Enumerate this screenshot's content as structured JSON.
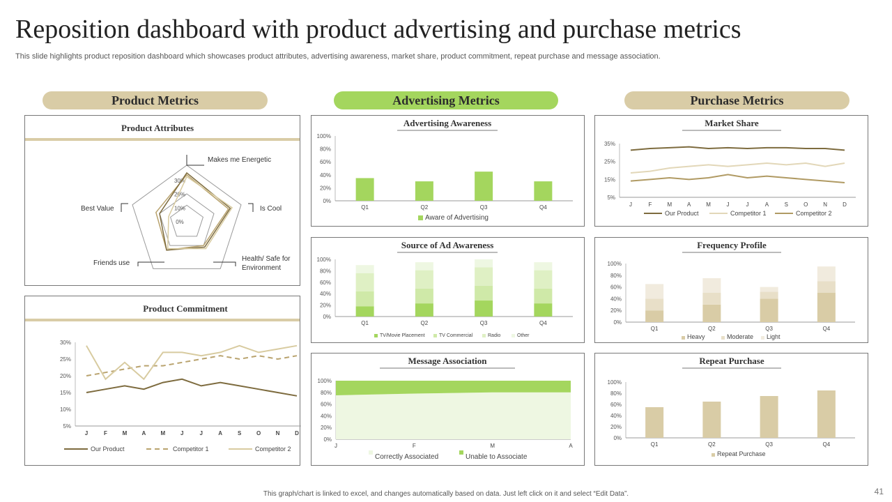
{
  "header": {
    "title": "Reposition dashboard with product advertising and purchase metrics",
    "subtitle": "This slide highlights product reposition dashboard which showcases product attributes, advertising awareness, market share, product commitment, repeat purchase and message association."
  },
  "sections": {
    "product": "Product Metrics",
    "advertising": "Advertising Metrics",
    "purchase": "Purchase Metrics"
  },
  "footer": {
    "note": "This graph/chart is linked to excel, and changes automatically based on data. Just left click on it and select “Edit Data”.",
    "page": "41"
  },
  "colors": {
    "tan": "#d9cca6",
    "green": "#a4d65e",
    "dark_olive": "#7d6b3e",
    "light_tan": "#d8cba0",
    "mid_tan": "#b9a36e"
  },
  "chart_data": [
    {
      "id": "product_attributes",
      "type": "radar",
      "title": "Product Attributes",
      "axes": [
        "Makes me Energetic",
        "Is Cool",
        "Health/ Safe for Environment",
        "Friends use",
        "Best Value"
      ],
      "ticks": [
        "0%",
        "10%",
        "20%",
        "30%"
      ],
      "rmax": 30,
      "series": [
        {
          "values": [
            25,
            23,
            15,
            18,
            17
          ]
        },
        {
          "values": [
            26,
            24,
            16,
            18,
            15
          ]
        },
        {
          "values": [
            24,
            25,
            17,
            17,
            10
          ]
        }
      ]
    },
    {
      "id": "product_commitment",
      "type": "line",
      "title": "Product Commitment",
      "x": [
        "J",
        "F",
        "M",
        "A",
        "M",
        "J",
        "J",
        "A",
        "S",
        "O",
        "N",
        "D"
      ],
      "yticks": [
        "5%",
        "10%",
        "15%",
        "20%",
        "25%",
        "30%"
      ],
      "ylim": [
        5,
        30
      ],
      "series": [
        {
          "name": "Our Product",
          "values": [
            15,
            16,
            17,
            16,
            18,
            19,
            17,
            18,
            17,
            16,
            15,
            14
          ]
        },
        {
          "name": "Competitor 1",
          "values": [
            20,
            21,
            22,
            23,
            23,
            24,
            25,
            26,
            25,
            26,
            25,
            26
          ]
        },
        {
          "name": "Competitor 2",
          "values": [
            29,
            19,
            24,
            19,
            27,
            27,
            26,
            27,
            29,
            27,
            28,
            29
          ]
        }
      ]
    },
    {
      "id": "advertising_awareness",
      "type": "bar",
      "title": "Advertising Awareness",
      "categories": [
        "Q1",
        "Q2",
        "Q3",
        "Q4"
      ],
      "yticks": [
        "0%",
        "20%",
        "40%",
        "60%",
        "80%",
        "100%"
      ],
      "ylim": [
        0,
        100
      ],
      "series": [
        {
          "name": "Aware of Advertising",
          "values": [
            35,
            30,
            45,
            30
          ]
        }
      ]
    },
    {
      "id": "source_ad_awareness",
      "type": "bar",
      "title": "Source of Ad Awareness",
      "categories": [
        "Q1",
        "Q2",
        "Q3",
        "Q4"
      ],
      "yticks": [
        "0%",
        "20%",
        "40%",
        "60%",
        "80%",
        "100%"
      ],
      "ylim": [
        0,
        100
      ],
      "series": [
        {
          "name": "TV/Movie Placement",
          "values": [
            18,
            23,
            28,
            23
          ]
        },
        {
          "name": "TV Commercial",
          "values": [
            26,
            26,
            26,
            26
          ]
        },
        {
          "name": "Radio",
          "values": [
            32,
            32,
            32,
            32
          ]
        },
        {
          "name": "Other",
          "values": [
            14,
            14,
            14,
            14
          ]
        }
      ]
    },
    {
      "id": "message_association",
      "type": "area",
      "title": "Message Association",
      "x": [
        "J",
        "F",
        "M",
        "A"
      ],
      "yticks": [
        "0%",
        "20%",
        "40%",
        "60%",
        "80%",
        "100%"
      ],
      "ylim": [
        0,
        100
      ],
      "series": [
        {
          "name": "Correctly Associated",
          "values": [
            75,
            78,
            80,
            80
          ]
        },
        {
          "name": "Unable to Associate",
          "values": [
            25,
            22,
            20,
            20
          ]
        }
      ]
    },
    {
      "id": "market_share",
      "type": "line",
      "title": "Market Share",
      "x": [
        "J",
        "F",
        "M",
        "A",
        "M",
        "J",
        "J",
        "A",
        "S",
        "O",
        "N",
        "D"
      ],
      "yticks": [
        "5%",
        "15%",
        "25%",
        "35%"
      ],
      "ylim": [
        5,
        38
      ],
      "series": [
        {
          "name": "Our Product",
          "values": [
            34,
            35,
            35.5,
            36,
            35,
            35.5,
            35,
            35.5,
            35.5,
            35,
            35,
            34
          ]
        },
        {
          "name": "Competitor 1",
          "values": [
            20,
            21,
            23,
            24,
            25,
            24,
            25,
            26,
            25,
            26,
            24,
            26
          ]
        },
        {
          "name": "Competitor 2",
          "values": [
            15,
            16,
            17,
            16,
            17,
            19,
            17,
            18,
            17,
            16,
            15,
            14
          ]
        }
      ]
    },
    {
      "id": "frequency_profile",
      "type": "bar",
      "title": "Frequency Profile",
      "categories": [
        "Q1",
        "Q2",
        "Q3",
        "Q4"
      ],
      "yticks": [
        "0%",
        "20%",
        "40%",
        "60%",
        "80%",
        "100%"
      ],
      "ylim": [
        0,
        100
      ],
      "series": [
        {
          "name": "Heavy",
          "values": [
            20,
            30,
            40,
            50
          ]
        },
        {
          "name": "Moderate",
          "values": [
            20,
            20,
            12,
            20
          ]
        },
        {
          "name": "Light",
          "values": [
            25,
            25,
            8,
            25
          ]
        }
      ]
    },
    {
      "id": "repeat_purchase",
      "type": "bar",
      "title": "Repeat Purchase",
      "categories": [
        "Q1",
        "Q2",
        "Q3",
        "Q4"
      ],
      "yticks": [
        "0%",
        "20%",
        "40%",
        "60%",
        "80%",
        "100%"
      ],
      "ylim": [
        0,
        100
      ],
      "series": [
        {
          "name": "Repeat Purchase",
          "values": [
            55,
            65,
            75,
            85
          ]
        }
      ]
    }
  ]
}
